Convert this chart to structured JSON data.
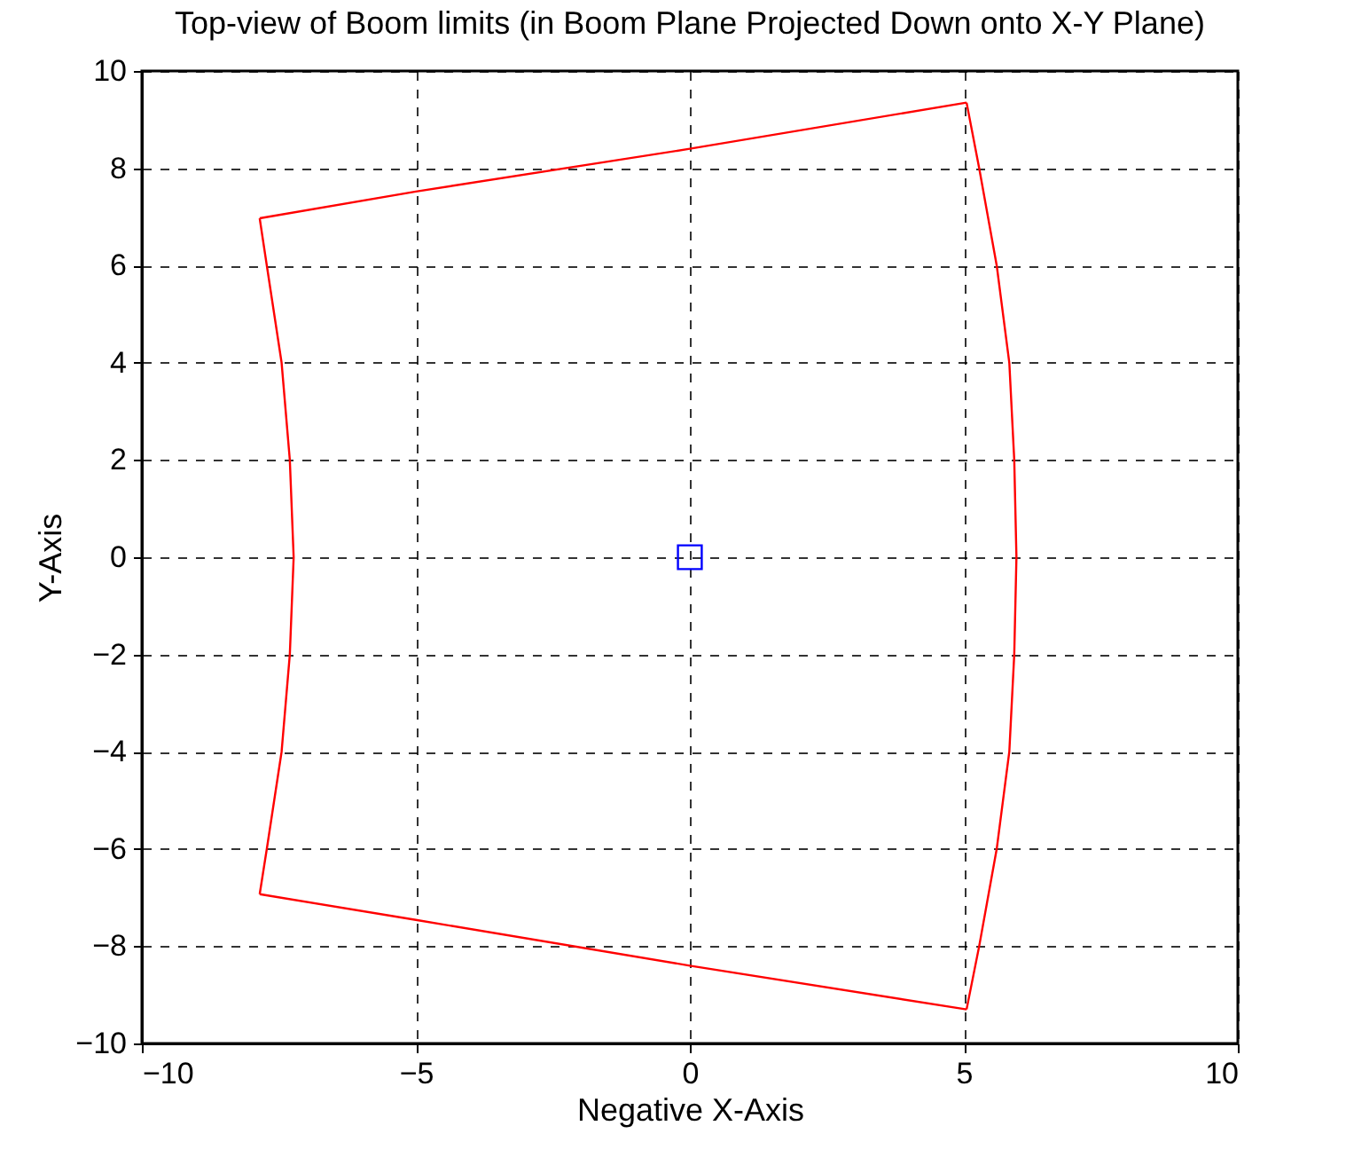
{
  "chart_data": {
    "type": "line",
    "title": "Top-view of Boom limits (in Boom Plane Projected Down onto X-Y Plane)",
    "xlabel": "Negative X-Axis",
    "ylabel": "Y-Axis",
    "series": [
      {
        "color": "#ff0000",
        "x": [
          -7.85,
          -5,
          0,
          5.05
        ],
        "values": [
          6.97,
          7.52,
          8.4,
          9.35
        ]
      },
      {
        "color": "#ff0000",
        "x": [
          5.05,
          5.28,
          5.6,
          5.83,
          5.92,
          5.96,
          5.92,
          5.83,
          5.6,
          5.28,
          5.05
        ],
        "values": [
          9.35,
          8,
          6,
          4,
          2,
          0,
          -2,
          -4,
          -6,
          -8,
          -9.3
        ]
      },
      {
        "color": "#ff0000",
        "x": [
          5.05,
          0,
          -5,
          -7.85
        ],
        "values": [
          -9.3,
          -8.4,
          -7.46,
          -6.93
        ]
      },
      {
        "color": "#ff0000",
        "x": [
          -7.85,
          -7.72,
          -7.45,
          -7.3,
          -7.23,
          -7.3,
          -7.45,
          -7.72,
          -7.85
        ],
        "values": [
          -6.93,
          -6,
          -4,
          -2,
          0,
          2,
          4,
          6,
          6.97
        ]
      },
      {
        "type": "scatter",
        "color": "#0000ff",
        "marker": "square",
        "x": [
          0
        ],
        "values": [
          0
        ]
      }
    ],
    "xlim": [
      -10,
      10
    ],
    "ylim": [
      -10,
      10
    ],
    "xticks": [
      -10,
      -5,
      0,
      5,
      10
    ],
    "yticks": [
      -10,
      -8,
      -6,
      -4,
      -2,
      0,
      2,
      4,
      6,
      8,
      10
    ],
    "grid": true
  }
}
